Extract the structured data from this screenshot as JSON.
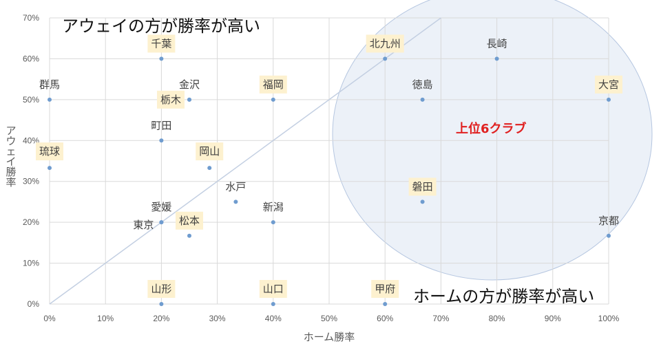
{
  "chart_data": {
    "type": "scatter",
    "xlabel": "ホーム勝率",
    "ylabel": "アウェイ勝率",
    "xlim": [
      0,
      100
    ],
    "ylim": [
      0,
      70
    ],
    "x_ticks": [
      "0%",
      "10%",
      "20%",
      "30%",
      "40%",
      "50%",
      "60%",
      "70%",
      "80%",
      "90%",
      "100%"
    ],
    "y_ticks": [
      "0%",
      "10%",
      "20%",
      "30%",
      "40%",
      "50%",
      "60%",
      "70%"
    ],
    "grid": true,
    "reference_line": "y = x",
    "annotations": {
      "top_left": "アウェイの方が勝率が高い",
      "bottom_right": "ホームの方が勝率が高い",
      "circle": "上位6クラブ"
    },
    "points": [
      {
        "label": "千葉",
        "x": 20,
        "y": 60,
        "highlight": true
      },
      {
        "label": "北九州",
        "x": 60,
        "y": 60,
        "highlight": true
      },
      {
        "label": "長崎",
        "x": 80,
        "y": 60,
        "highlight": false
      },
      {
        "label": "群馬",
        "x": 0,
        "y": 50,
        "highlight": false
      },
      {
        "label": "金沢",
        "x": 25,
        "y": 50,
        "highlight": false
      },
      {
        "label": "栃木",
        "x": 25,
        "y": 50,
        "highlight": true
      },
      {
        "label": "福岡",
        "x": 40,
        "y": 50,
        "highlight": true
      },
      {
        "label": "徳島",
        "x": 66.7,
        "y": 50,
        "highlight": false
      },
      {
        "label": "大宮",
        "x": 100,
        "y": 50,
        "highlight": true
      },
      {
        "label": "町田",
        "x": 20,
        "y": 40,
        "highlight": false
      },
      {
        "label": "琉球",
        "x": 0,
        "y": 33.3,
        "highlight": true
      },
      {
        "label": "岡山",
        "x": 28.6,
        "y": 33.3,
        "highlight": true
      },
      {
        "label": "水戸",
        "x": 33.3,
        "y": 25,
        "highlight": false
      },
      {
        "label": "磐田",
        "x": 66.7,
        "y": 25,
        "highlight": true
      },
      {
        "label": "愛媛",
        "x": 20,
        "y": 20,
        "highlight": false
      },
      {
        "label": "東京",
        "x": 20,
        "y": 20,
        "highlight": false
      },
      {
        "label": "新潟",
        "x": 40,
        "y": 20,
        "highlight": false
      },
      {
        "label": "松本",
        "x": 25,
        "y": 16.7,
        "highlight": true
      },
      {
        "label": "京都",
        "x": 100,
        "y": 16.7,
        "highlight": false
      },
      {
        "label": "山形",
        "x": 20,
        "y": 0,
        "highlight": true
      },
      {
        "label": "山口",
        "x": 40,
        "y": 0,
        "highlight": true
      },
      {
        "label": "甲府",
        "x": 60,
        "y": 0,
        "highlight": true
      }
    ],
    "colors": {
      "point": "#6f9ccf",
      "highlight_box": "#fdf1cf",
      "circle_fill": "#e9eef7",
      "circle_stroke": "#b5c6e0",
      "region_text": "#e02020",
      "grid": "#d9d9d9",
      "reference_line": "#c3cfe2"
    }
  }
}
